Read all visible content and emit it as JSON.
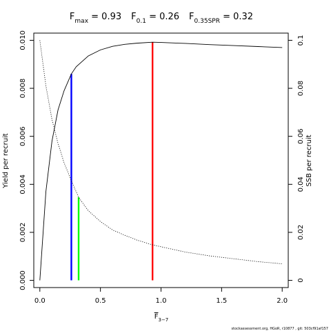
{
  "chart_data": {
    "type": "line",
    "title_parts": [
      {
        "base": "F",
        "sub": "max",
        "rest": " = 0.93"
      },
      {
        "base": "F",
        "sub": "0.1",
        "rest": " = 0.26"
      },
      {
        "base": "F",
        "sub": "0.35SPR",
        "rest": " = 0.32"
      }
    ],
    "xlabel": {
      "base": "F",
      "sub": "3−7"
    },
    "ylabel": "Yield per recruit",
    "y2label": "SSB per recruit",
    "xlim": [
      -0.05,
      2.05
    ],
    "ylim": [
      -0.0003,
      0.0103
    ],
    "y2lim": [
      -0.003,
      0.103
    ],
    "x_ticks": [
      0,
      0.5,
      1.0,
      1.5,
      2.0
    ],
    "x_tick_labels": [
      "0.0",
      "0.5",
      "1.0",
      "1.5",
      "2.0"
    ],
    "y_ticks": [
      0,
      0.002,
      0.004,
      0.006,
      0.008,
      0.01
    ],
    "y_tick_labels": [
      "0.000",
      "0.002",
      "0.004",
      "0.006",
      "0.008",
      "0.010"
    ],
    "y2_ticks": [
      0,
      0.02,
      0.04,
      0.06,
      0.08,
      0.1
    ],
    "y2_tick_labels": [
      "0",
      "0.02",
      "0.04",
      "0.06",
      "0.08",
      "0.1"
    ],
    "series": [
      {
        "axis": "left",
        "style": "solid",
        "color": "#000000",
        "x": [
          0,
          0.05,
          0.1,
          0.15,
          0.2,
          0.26,
          0.3,
          0.4,
          0.5,
          0.6,
          0.7,
          0.8,
          0.93,
          1.0,
          1.2,
          1.4,
          1.6,
          1.8,
          2.0
        ],
        "y": [
          0,
          0.0037,
          0.0058,
          0.0071,
          0.0079,
          0.0086,
          0.0089,
          0.00935,
          0.0096,
          0.00975,
          0.00983,
          0.00988,
          0.00992,
          0.00991,
          0.00987,
          0.00982,
          0.00978,
          0.00974,
          0.0097
        ]
      },
      {
        "axis": "right",
        "style": "dotted",
        "color": "#000000",
        "x": [
          0,
          0.05,
          0.1,
          0.15,
          0.2,
          0.26,
          0.32,
          0.4,
          0.5,
          0.6,
          0.7,
          0.8,
          0.93,
          1.0,
          1.2,
          1.4,
          1.6,
          1.8,
          2.0
        ],
        "y": [
          0.1,
          0.081,
          0.067,
          0.057,
          0.049,
          0.0415,
          0.0346,
          0.029,
          0.0245,
          0.021,
          0.0188,
          0.0168,
          0.0148,
          0.014,
          0.0118,
          0.0102,
          0.009,
          0.0078,
          0.0069
        ]
      }
    ],
    "reference_lines": [
      {
        "name": "Fmax",
        "x": 0.93,
        "axis": "left",
        "y_top": 0.00992,
        "color": "#ff0000"
      },
      {
        "name": "F0.1",
        "x": 0.26,
        "axis": "left",
        "y_top": 0.0086,
        "color": "#0000ff"
      },
      {
        "name": "F0.35SPR",
        "x": 0.32,
        "axis": "right",
        "y_top": 0.0346,
        "color": "#00ff00"
      }
    ]
  },
  "footer": "stockassessment.org, HGoR, r10877 , git: 503cf91af157"
}
